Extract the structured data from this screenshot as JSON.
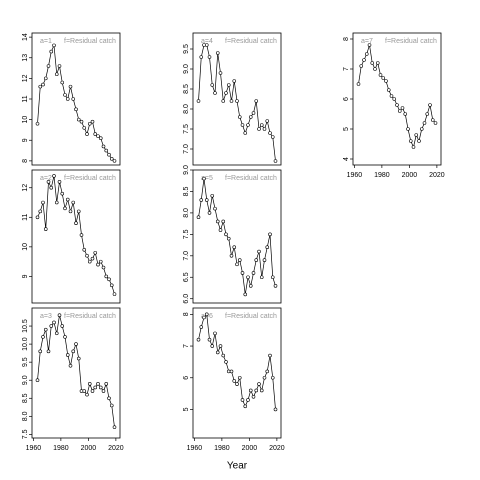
{
  "chart_data": [
    {
      "type": "line",
      "label": "a=1",
      "subtitle": "f=Residual catch",
      "x": [
        1963,
        1965,
        1967,
        1969,
        1971,
        1973,
        1975,
        1977,
        1979,
        1981,
        1983,
        1985,
        1987,
        1989,
        1991,
        1993,
        1995,
        1997,
        1999,
        2001,
        2003,
        2005,
        2007,
        2009,
        2011,
        2013,
        2015,
        2017,
        2019
      ],
      "values": [
        9.8,
        11.6,
        11.7,
        12.0,
        12.6,
        13.3,
        13.6,
        12.2,
        12.6,
        11.8,
        11.2,
        11.0,
        11.6,
        11.0,
        10.5,
        10.0,
        9.9,
        9.6,
        9.3,
        9.8,
        9.9,
        9.3,
        9.2,
        9.1,
        8.7,
        8.5,
        8.3,
        8.1,
        8.0
      ],
      "xlim": [
        1959,
        2023
      ],
      "ylim": [
        7.8,
        14.2
      ],
      "yticks": [
        8,
        9,
        10,
        11,
        12,
        13,
        14
      ]
    },
    {
      "type": "line",
      "label": "a=2",
      "subtitle": "f=Residual catch",
      "x": [
        1963,
        1965,
        1967,
        1969,
        1971,
        1973,
        1975,
        1977,
        1979,
        1981,
        1983,
        1985,
        1987,
        1989,
        1991,
        1993,
        1995,
        1997,
        1999,
        2001,
        2003,
        2005,
        2007,
        2009,
        2011,
        2013,
        2015,
        2017,
        2019
      ],
      "values": [
        11.0,
        11.2,
        11.5,
        10.6,
        12.2,
        12.0,
        12.4,
        11.5,
        12.2,
        11.8,
        11.3,
        11.6,
        11.2,
        11.5,
        10.8,
        11.2,
        10.4,
        9.9,
        9.7,
        9.5,
        9.6,
        9.8,
        9.4,
        9.5,
        9.3,
        9.0,
        8.9,
        8.7,
        8.4
      ],
      "xlim": [
        1959,
        2023
      ],
      "ylim": [
        8.1,
        12.6
      ],
      "yticks": [
        9,
        10,
        11,
        12
      ]
    },
    {
      "type": "line",
      "label": "a=3",
      "subtitle": "f=Residual catch",
      "x": [
        1963,
        1965,
        1967,
        1969,
        1971,
        1973,
        1975,
        1977,
        1979,
        1981,
        1983,
        1985,
        1987,
        1989,
        1991,
        1993,
        1995,
        1997,
        1999,
        2001,
        2003,
        2005,
        2007,
        2009,
        2011,
        2013,
        2015,
        2017,
        2019
      ],
      "values": [
        9.0,
        9.8,
        10.2,
        10.4,
        9.8,
        10.5,
        10.6,
        10.3,
        10.8,
        10.5,
        10.2,
        9.7,
        9.4,
        9.8,
        10.0,
        9.6,
        8.7,
        8.7,
        8.6,
        8.9,
        8.7,
        8.8,
        8.9,
        8.8,
        8.7,
        8.9,
        8.5,
        8.3,
        7.7
      ],
      "xlim": [
        1959,
        2023
      ],
      "ylim": [
        7.4,
        11.0
      ],
      "yticks": [
        7.5,
        {
          "value": 8,
          "label": "8.0"
        },
        8.5,
        {
          "value": 9,
          "label": "9.0"
        },
        9.5,
        {
          "value": 10,
          "label": "10.0"
        },
        10.5
      ],
      "xticks": [
        1960,
        1980,
        2000,
        2020
      ]
    },
    {
      "type": "line",
      "label": "a=4",
      "subtitle": "f=Residual catch",
      "x": [
        1963,
        1965,
        1967,
        1969,
        1971,
        1973,
        1975,
        1977,
        1979,
        1981,
        1983,
        1985,
        1987,
        1989,
        1991,
        1993,
        1995,
        1997,
        1999,
        2001,
        2003,
        2005,
        2007,
        2009,
        2011,
        2013,
        2015,
        2017,
        2019
      ],
      "values": [
        8.2,
        9.3,
        9.6,
        9.6,
        9.3,
        8.6,
        8.4,
        9.4,
        8.9,
        8.2,
        8.4,
        8.6,
        8.2,
        8.7,
        8.2,
        7.8,
        7.6,
        7.4,
        7.6,
        7.8,
        7.9,
        8.2,
        7.5,
        7.6,
        7.5,
        7.7,
        7.4,
        7.3,
        6.7
      ],
      "xlim": [
        1959,
        2023
      ],
      "ylim": [
        6.6,
        9.9
      ],
      "yticks": [
        {
          "value": 7,
          "label": "7.0"
        },
        7.5,
        {
          "value": 8,
          "label": "8.0"
        },
        8.5,
        {
          "value": 9,
          "label": "9.0"
        },
        9.5
      ]
    },
    {
      "type": "line",
      "label": "a=5",
      "subtitle": "f=Residual catch",
      "x": [
        1963,
        1965,
        1967,
        1969,
        1971,
        1973,
        1975,
        1977,
        1979,
        1981,
        1983,
        1985,
        1987,
        1989,
        1991,
        1993,
        1995,
        1997,
        1999,
        2001,
        2003,
        2005,
        2007,
        2009,
        2011,
        2013,
        2015,
        2017,
        2019
      ],
      "values": [
        7.9,
        8.3,
        8.8,
        8.3,
        8.0,
        8.4,
        8.1,
        7.8,
        7.6,
        7.8,
        7.5,
        7.4,
        7.0,
        7.2,
        6.8,
        6.9,
        6.6,
        6.1,
        6.5,
        6.3,
        6.6,
        6.9,
        7.1,
        6.5,
        6.9,
        7.2,
        7.5,
        6.5,
        6.3
      ],
      "xlim": [
        1959,
        2023
      ],
      "ylim": [
        5.9,
        9.0
      ],
      "yticks": [
        {
          "value": 6,
          "label": "6.0"
        },
        6.5,
        {
          "value": 7,
          "label": "7.0"
        },
        7.5,
        {
          "value": 8,
          "label": "8.0"
        },
        8.5,
        {
          "value": 9,
          "label": "9.0"
        }
      ]
    },
    {
      "type": "line",
      "label": "a=6",
      "subtitle": "f=Residual catch",
      "x": [
        1963,
        1965,
        1967,
        1969,
        1971,
        1973,
        1975,
        1977,
        1979,
        1981,
        1983,
        1985,
        1987,
        1989,
        1991,
        1993,
        1995,
        1997,
        1999,
        2001,
        2003,
        2005,
        2007,
        2009,
        2011,
        2013,
        2015,
        2017,
        2019
      ],
      "values": [
        7.2,
        7.6,
        7.9,
        8.0,
        7.2,
        7.0,
        7.4,
        6.8,
        7.0,
        6.7,
        6.5,
        6.2,
        6.2,
        5.9,
        5.8,
        6.0,
        5.3,
        5.1,
        5.3,
        5.6,
        5.4,
        5.6,
        5.8,
        5.6,
        6.0,
        6.2,
        6.7,
        6.0,
        5.0
      ],
      "xlim": [
        1959,
        2023
      ],
      "ylim": [
        4.1,
        8.2
      ],
      "yticks": [
        5,
        6,
        7,
        8
      ],
      "xticks": [
        1960,
        1980,
        2000,
        2020
      ],
      "xlabel": "Year"
    },
    {
      "type": "line",
      "label": "a=7",
      "subtitle": "f=Residual catch",
      "x": [
        1963,
        1965,
        1967,
        1969,
        1971,
        1973,
        1975,
        1977,
        1979,
        1981,
        1983,
        1985,
        1987,
        1989,
        1991,
        1993,
        1995,
        1997,
        1999,
        2001,
        2003,
        2005,
        2007,
        2009,
        2011,
        2013,
        2015,
        2017,
        2019
      ],
      "values": [
        6.5,
        7.1,
        7.3,
        7.5,
        7.8,
        7.2,
        7.0,
        7.2,
        6.8,
        6.7,
        6.6,
        6.3,
        6.1,
        6.0,
        5.8,
        5.6,
        5.7,
        5.5,
        5.0,
        4.6,
        4.4,
        4.8,
        4.6,
        5.0,
        5.2,
        5.5,
        5.8,
        5.3,
        5.2
      ],
      "xlim": [
        1959,
        2023
      ],
      "ylim": [
        3.8,
        8.2
      ],
      "yticks": [
        4,
        5,
        6,
        7,
        8
      ],
      "xticks": [
        1960,
        1980,
        2000,
        2020
      ]
    }
  ]
}
